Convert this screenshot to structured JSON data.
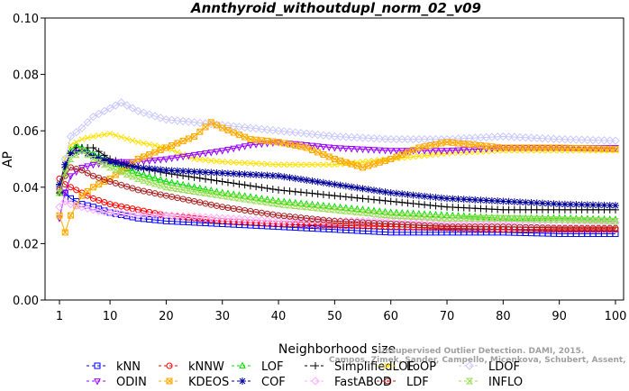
{
  "chart_data": {
    "type": "line",
    "title": "Annthyroid_withoutdupl_norm_02_v09",
    "xlabel": "Neighborhood size",
    "ylabel": "AP",
    "xlim": [
      1,
      100
    ],
    "ylim": [
      0.0,
      0.1
    ],
    "xticks": [
      "1",
      "10",
      "20",
      "30",
      "40",
      "50",
      "60",
      "70",
      "80",
      "90",
      "100"
    ],
    "yticks": [
      "0.00",
      "0.02",
      "0.04",
      "0.06",
      "0.08",
      "0.10"
    ],
    "grid": false,
    "legend_position": "bottom",
    "watermark": [
      "Unsupervised Outlier Detection. DAMI, 2015.",
      "Campos, Zimek, Sander, Campello, Micenkova, Schubert, Assent, Houle"
    ],
    "series": [
      {
        "name": "kNN",
        "color": "#0000ff",
        "marker": "square",
        "points": [
          [
            1,
            0.04
          ],
          [
            2,
            0.038
          ],
          [
            3,
            0.036
          ],
          [
            5,
            0.034
          ],
          [
            7,
            0.033
          ],
          [
            10,
            0.031
          ],
          [
            15,
            0.029
          ],
          [
            20,
            0.028
          ],
          [
            30,
            0.027
          ],
          [
            40,
            0.026
          ],
          [
            50,
            0.025
          ],
          [
            60,
            0.024
          ],
          [
            70,
            0.024
          ],
          [
            80,
            0.024
          ],
          [
            90,
            0.0235
          ],
          [
            100,
            0.0235
          ]
        ]
      },
      {
        "name": "kNNW",
        "color": "#ff0000",
        "marker": "circle",
        "points": [
          [
            1,
            0.043
          ],
          [
            2,
            0.041
          ],
          [
            3,
            0.04
          ],
          [
            5,
            0.038
          ],
          [
            7,
            0.036
          ],
          [
            10,
            0.034
          ],
          [
            15,
            0.032
          ],
          [
            20,
            0.03
          ],
          [
            30,
            0.028
          ],
          [
            40,
            0.027
          ],
          [
            50,
            0.0265
          ],
          [
            60,
            0.026
          ],
          [
            70,
            0.0255
          ],
          [
            80,
            0.025
          ],
          [
            90,
            0.025
          ],
          [
            100,
            0.025
          ]
        ]
      },
      {
        "name": "LOF",
        "color": "#00dd00",
        "marker": "triangle",
        "points": [
          [
            1,
            0.038
          ],
          [
            2,
            0.045
          ],
          [
            3,
            0.053
          ],
          [
            4,
            0.055
          ],
          [
            5,
            0.054
          ],
          [
            7,
            0.052
          ],
          [
            10,
            0.049
          ],
          [
            15,
            0.045
          ],
          [
            20,
            0.042
          ],
          [
            30,
            0.038
          ],
          [
            40,
            0.035
          ],
          [
            50,
            0.033
          ],
          [
            60,
            0.031
          ],
          [
            70,
            0.03
          ],
          [
            80,
            0.029
          ],
          [
            90,
            0.029
          ],
          [
            100,
            0.0285
          ]
        ]
      },
      {
        "name": "SimplifiedLOF",
        "color": "#000000",
        "marker": "plus",
        "points": [
          [
            1,
            0.038
          ],
          [
            2,
            0.047
          ],
          [
            3,
            0.052
          ],
          [
            4,
            0.054
          ],
          [
            5,
            0.054
          ],
          [
            7,
            0.054
          ],
          [
            10,
            0.05
          ],
          [
            15,
            0.047
          ],
          [
            20,
            0.045
          ],
          [
            30,
            0.042
          ],
          [
            40,
            0.039
          ],
          [
            50,
            0.037
          ],
          [
            60,
            0.035
          ],
          [
            70,
            0.033
          ],
          [
            80,
            0.032
          ],
          [
            90,
            0.032
          ],
          [
            100,
            0.032
          ]
        ]
      },
      {
        "name": "LoOP",
        "color": "#ffe000",
        "marker": "x",
        "points": [
          [
            1,
            0.04
          ],
          [
            2,
            0.05
          ],
          [
            3,
            0.055
          ],
          [
            5,
            0.057
          ],
          [
            7,
            0.058
          ],
          [
            10,
            0.059
          ],
          [
            15,
            0.056
          ],
          [
            20,
            0.054
          ],
          [
            25,
            0.05
          ],
          [
            30,
            0.049
          ],
          [
            40,
            0.048
          ],
          [
            50,
            0.048
          ],
          [
            60,
            0.05
          ],
          [
            70,
            0.052
          ],
          [
            80,
            0.053
          ],
          [
            90,
            0.053
          ],
          [
            100,
            0.053
          ]
        ]
      },
      {
        "name": "LDOF",
        "color": "#c8c8ff",
        "marker": "diamond",
        "points": [
          [
            1,
            0.04
          ],
          [
            2,
            0.05
          ],
          [
            3,
            0.058
          ],
          [
            5,
            0.061
          ],
          [
            7,
            0.065
          ],
          [
            10,
            0.068
          ],
          [
            12,
            0.07
          ],
          [
            15,
            0.067
          ],
          [
            20,
            0.064
          ],
          [
            25,
            0.063
          ],
          [
            30,
            0.062
          ],
          [
            40,
            0.06
          ],
          [
            50,
            0.058
          ],
          [
            60,
            0.057
          ],
          [
            70,
            0.057
          ],
          [
            80,
            0.058
          ],
          [
            90,
            0.057
          ],
          [
            100,
            0.0565
          ]
        ]
      },
      {
        "name": "ODIN",
        "color": "#9900ff",
        "marker": "triangle-down",
        "points": [
          [
            1,
            0.029
          ],
          [
            2,
            0.038
          ],
          [
            3,
            0.044
          ],
          [
            5,
            0.047
          ],
          [
            7,
            0.048
          ],
          [
            10,
            0.049
          ],
          [
            15,
            0.049
          ],
          [
            20,
            0.05
          ],
          [
            30,
            0.053
          ],
          [
            35,
            0.055
          ],
          [
            40,
            0.056
          ],
          [
            45,
            0.055
          ],
          [
            50,
            0.054
          ],
          [
            60,
            0.053
          ],
          [
            70,
            0.053
          ],
          [
            80,
            0.054
          ],
          [
            90,
            0.054
          ],
          [
            100,
            0.054
          ]
        ]
      },
      {
        "name": "KDEOS",
        "color": "#ffaa00",
        "marker": "square-x",
        "points": [
          [
            1,
            0.03
          ],
          [
            2,
            0.024
          ],
          [
            3,
            0.03
          ],
          [
            5,
            0.037
          ],
          [
            7,
            0.04
          ],
          [
            10,
            0.043
          ],
          [
            15,
            0.05
          ],
          [
            20,
            0.054
          ],
          [
            25,
            0.058
          ],
          [
            28,
            0.063
          ],
          [
            30,
            0.061
          ],
          [
            35,
            0.057
          ],
          [
            40,
            0.056
          ],
          [
            45,
            0.054
          ],
          [
            50,
            0.05
          ],
          [
            55,
            0.047
          ],
          [
            60,
            0.05
          ],
          [
            65,
            0.054
          ],
          [
            70,
            0.056
          ],
          [
            75,
            0.055
          ],
          [
            80,
            0.054
          ],
          [
            90,
            0.054
          ],
          [
            100,
            0.0535
          ]
        ]
      },
      {
        "name": "COF",
        "color": "#000099",
        "marker": "star",
        "points": [
          [
            1,
            0.041
          ],
          [
            2,
            0.048
          ],
          [
            3,
            0.052
          ],
          [
            5,
            0.053
          ],
          [
            7,
            0.051
          ],
          [
            10,
            0.049
          ],
          [
            15,
            0.047
          ],
          [
            20,
            0.046
          ],
          [
            30,
            0.045
          ],
          [
            40,
            0.044
          ],
          [
            50,
            0.041
          ],
          [
            60,
            0.038
          ],
          [
            70,
            0.036
          ],
          [
            80,
            0.035
          ],
          [
            90,
            0.034
          ],
          [
            100,
            0.0335
          ]
        ]
      },
      {
        "name": "FastABOD",
        "color": "#ffaaff",
        "marker": "diamond",
        "points": [
          [
            1,
            0.033
          ],
          [
            2,
            0.035
          ],
          [
            3,
            0.034
          ],
          [
            5,
            0.033
          ],
          [
            7,
            0.032
          ],
          [
            10,
            0.031
          ],
          [
            15,
            0.03
          ],
          [
            20,
            0.03
          ],
          [
            30,
            0.029
          ],
          [
            40,
            0.028
          ],
          [
            50,
            0.028
          ],
          [
            60,
            0.028
          ],
          [
            70,
            0.0275
          ],
          [
            80,
            0.0275
          ],
          [
            90,
            0.0275
          ],
          [
            100,
            0.0275
          ]
        ]
      },
      {
        "name": "LDF",
        "color": "#aa2222",
        "marker": "circle-dot",
        "points": [
          [
            1,
            0.039
          ],
          [
            2,
            0.044
          ],
          [
            3,
            0.047
          ],
          [
            5,
            0.046
          ],
          [
            7,
            0.044
          ],
          [
            10,
            0.042
          ],
          [
            15,
            0.039
          ],
          [
            20,
            0.037
          ],
          [
            25,
            0.035
          ],
          [
            30,
            0.033
          ],
          [
            40,
            0.03
          ],
          [
            50,
            0.028
          ],
          [
            60,
            0.027
          ],
          [
            70,
            0.026
          ],
          [
            80,
            0.026
          ],
          [
            90,
            0.0255
          ],
          [
            100,
            0.0255
          ]
        ]
      },
      {
        "name": "INFLO",
        "color": "#99dd55",
        "marker": "hourglass",
        "points": [
          [
            1,
            0.038
          ],
          [
            2,
            0.045
          ],
          [
            3,
            0.05
          ],
          [
            5,
            0.053
          ],
          [
            7,
            0.05
          ],
          [
            10,
            0.047
          ],
          [
            15,
            0.043
          ],
          [
            20,
            0.04
          ],
          [
            30,
            0.037
          ],
          [
            40,
            0.034
          ],
          [
            50,
            0.032
          ],
          [
            60,
            0.03
          ],
          [
            70,
            0.029
          ],
          [
            80,
            0.029
          ],
          [
            90,
            0.0285
          ],
          [
            100,
            0.028
          ]
        ]
      }
    ]
  }
}
